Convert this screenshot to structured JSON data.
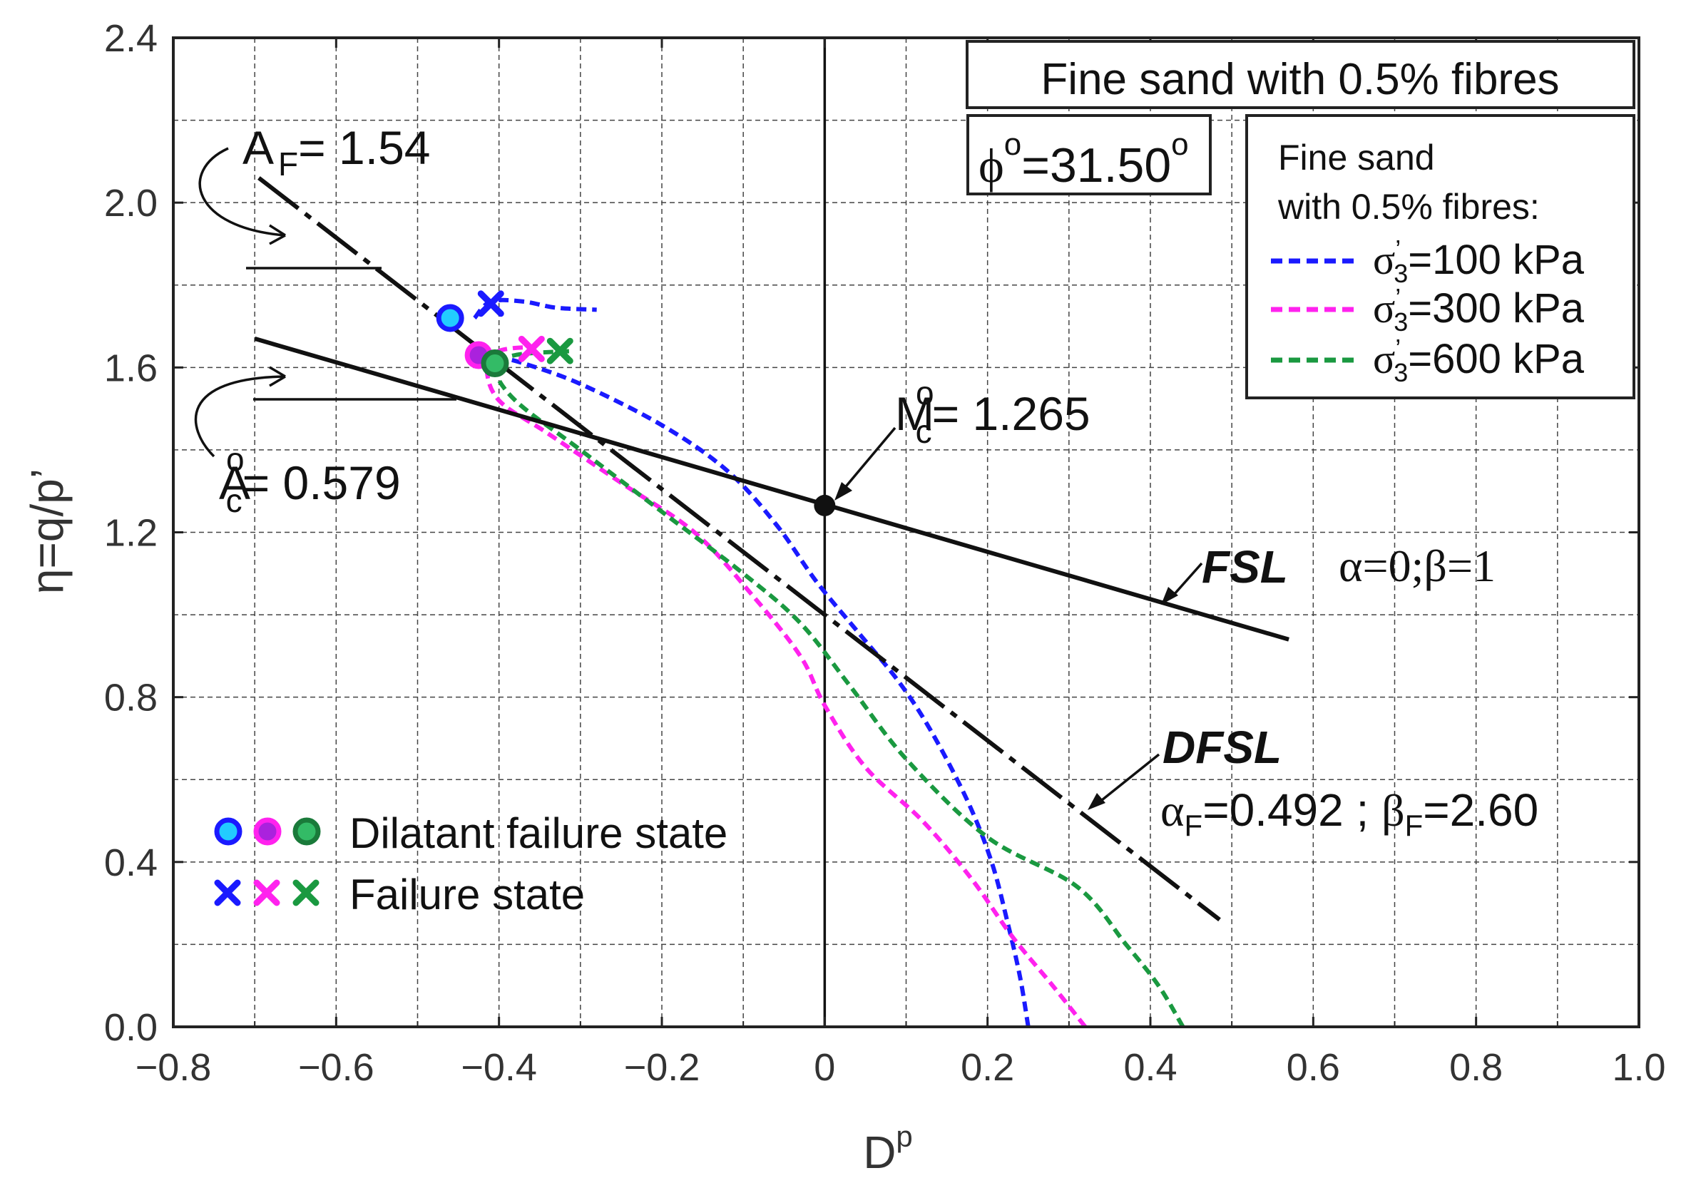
{
  "chart_data": {
    "type": "line",
    "xlabel": "D",
    "xlabel_sup": "p",
    "ylabel": "η=q/p’",
    "xlim": [
      -0.8,
      1.0
    ],
    "ylim": [
      0.0,
      2.4
    ],
    "grid": true,
    "x_ticks": [
      {
        "v": -0.8,
        "label": "−0.8"
      },
      {
        "v": -0.6,
        "label": "−0.6"
      },
      {
        "v": -0.4,
        "label": "−0.4"
      },
      {
        "v": -0.2,
        "label": "−0.2"
      },
      {
        "v": 0,
        "label": "0"
      },
      {
        "v": 0.2,
        "label": "0.2"
      },
      {
        "v": 0.4,
        "label": "0.4"
      },
      {
        "v": 0.6,
        "label": "0.6"
      },
      {
        "v": 0.8,
        "label": "0.8"
      },
      {
        "v": 1.0,
        "label": "1.0"
      }
    ],
    "y_ticks": [
      {
        "v": 0.0,
        "label": "0.0"
      },
      {
        "v": 0.4,
        "label": "0.4"
      },
      {
        "v": 0.8,
        "label": "0.8"
      },
      {
        "v": 1.2,
        "label": "1.2"
      },
      {
        "v": 1.6,
        "label": "1.6"
      },
      {
        "v": 2.0,
        "label": "2.0"
      },
      {
        "v": 2.4,
        "label": "2.4"
      }
    ],
    "series": [
      {
        "name": "σ’3=100 kPa",
        "color": "#1a1aff",
        "points": [
          [
            0.25,
            0.0
          ],
          [
            0.24,
            0.12
          ],
          [
            0.225,
            0.25
          ],
          [
            0.205,
            0.4
          ],
          [
            0.175,
            0.55
          ],
          [
            0.13,
            0.72
          ],
          [
            0.09,
            0.84
          ],
          [
            0.04,
            0.96
          ],
          [
            -0.01,
            1.08
          ],
          [
            -0.06,
            1.22
          ],
          [
            -0.12,
            1.35
          ],
          [
            -0.2,
            1.46
          ],
          [
            -0.3,
            1.56
          ],
          [
            -0.37,
            1.61
          ],
          [
            -0.4,
            1.625
          ]
        ]
      },
      {
        "name": "σ’3=300 kPa",
        "color": "#ff22ee",
        "points": [
          [
            0.32,
            0.0
          ],
          [
            0.28,
            0.1
          ],
          [
            0.23,
            0.22
          ],
          [
            0.18,
            0.36
          ],
          [
            0.12,
            0.5
          ],
          [
            0.05,
            0.63
          ],
          [
            0.0,
            0.78
          ],
          [
            -0.03,
            0.9
          ],
          [
            -0.09,
            1.05
          ],
          [
            -0.16,
            1.2
          ],
          [
            -0.25,
            1.32
          ],
          [
            -0.34,
            1.44
          ],
          [
            -0.4,
            1.52
          ],
          [
            -0.415,
            1.6
          ],
          [
            -0.4,
            1.64
          ],
          [
            -0.36,
            1.65
          ]
        ]
      },
      {
        "name": "σ’3=600 kPa",
        "color": "#1a9940",
        "points": [
          [
            0.44,
            0.0
          ],
          [
            0.41,
            0.1
          ],
          [
            0.37,
            0.2
          ],
          [
            0.31,
            0.34
          ],
          [
            0.2,
            0.46
          ],
          [
            0.1,
            0.65
          ],
          [
            0.03,
            0.83
          ],
          [
            -0.03,
            0.98
          ],
          [
            -0.1,
            1.1
          ],
          [
            -0.2,
            1.25
          ],
          [
            -0.3,
            1.4
          ],
          [
            -0.38,
            1.52
          ],
          [
            -0.405,
            1.6
          ],
          [
            -0.38,
            1.63
          ],
          [
            -0.31,
            1.64
          ]
        ]
      }
    ],
    "extra_curve": {
      "name": "σ’3=100 kPa tail",
      "color": "#1a1aff",
      "points": [
        [
          -0.43,
          1.72
        ],
        [
          -0.41,
          1.76
        ],
        [
          -0.37,
          1.76
        ],
        [
          -0.33,
          1.745
        ],
        [
          -0.28,
          1.74
        ]
      ]
    },
    "dilatant_points": [
      {
        "x": -0.46,
        "y": 1.72,
        "fill": "#22ccff",
        "edge": "#1a1aff"
      },
      {
        "x": -0.425,
        "y": 1.63,
        "fill": "#aa22dd",
        "edge": "#ff22ee"
      },
      {
        "x": -0.405,
        "y": 1.61,
        "fill": "#33bb66",
        "edge": "#1a7a3a"
      }
    ],
    "failure_points": [
      {
        "x": -0.41,
        "y": 1.755,
        "color": "#1a1aff"
      },
      {
        "x": -0.36,
        "y": 1.645,
        "color": "#ff22ee"
      },
      {
        "x": -0.325,
        "y": 1.64,
        "color": "#1a9940"
      }
    ],
    "fsl_line": {
      "x1": -0.7,
      "y1": 1.67,
      "x2": 0.57,
      "y2": 0.94
    },
    "dfsl_line": {
      "x1": -0.695,
      "y1": 2.06,
      "x2": 0.485,
      "y2": 0.26
    },
    "origin_point": {
      "x": 0,
      "y": 1.265
    },
    "annotations": {
      "af": {
        "main": "A",
        "sub": "F",
        "value": "= 1.54"
      },
      "ac": {
        "main": "A",
        "sup": "o",
        "sub": "c",
        "value": "= 0.579"
      },
      "mc": {
        "main": "M",
        "sup": "o",
        "sub": "c",
        "value": "= 1.265"
      },
      "fsl_label": "FSL",
      "fsl_params": "α=0;β=1",
      "dfsl_label": "DFSL",
      "dfsl_params": {
        "a": "α",
        "a_sub": "F",
        "a_val": "=0.492 ; ",
        "b": "β",
        "b_sub": "F",
        "b_val": "=2.60"
      }
    },
    "title_box": "Fine sand with 0.5% fibres",
    "phi_box": {
      "sym": "ϕ",
      "sup": "o",
      "value": "=31.50",
      "deg": "o"
    },
    "legend": {
      "title1": "Fine sand",
      "title2": "with 0.5% fibres:",
      "items": [
        {
          "sym": "σ",
          "sup": "’",
          "sub": "3",
          "value": "=100 kPa",
          "color": "#1a1aff"
        },
        {
          "sym": "σ",
          "sup": "’",
          "sub": "3",
          "value": "=300 kPa",
          "color": "#ff22ee"
        },
        {
          "sym": "σ",
          "sup": "’",
          "sub": "3",
          "value": "=600 kPa",
          "color": "#1a9940"
        }
      ]
    },
    "marker_legend": {
      "dilatant_label": "Dilatant failure state",
      "failure_label": "Failure state"
    }
  }
}
